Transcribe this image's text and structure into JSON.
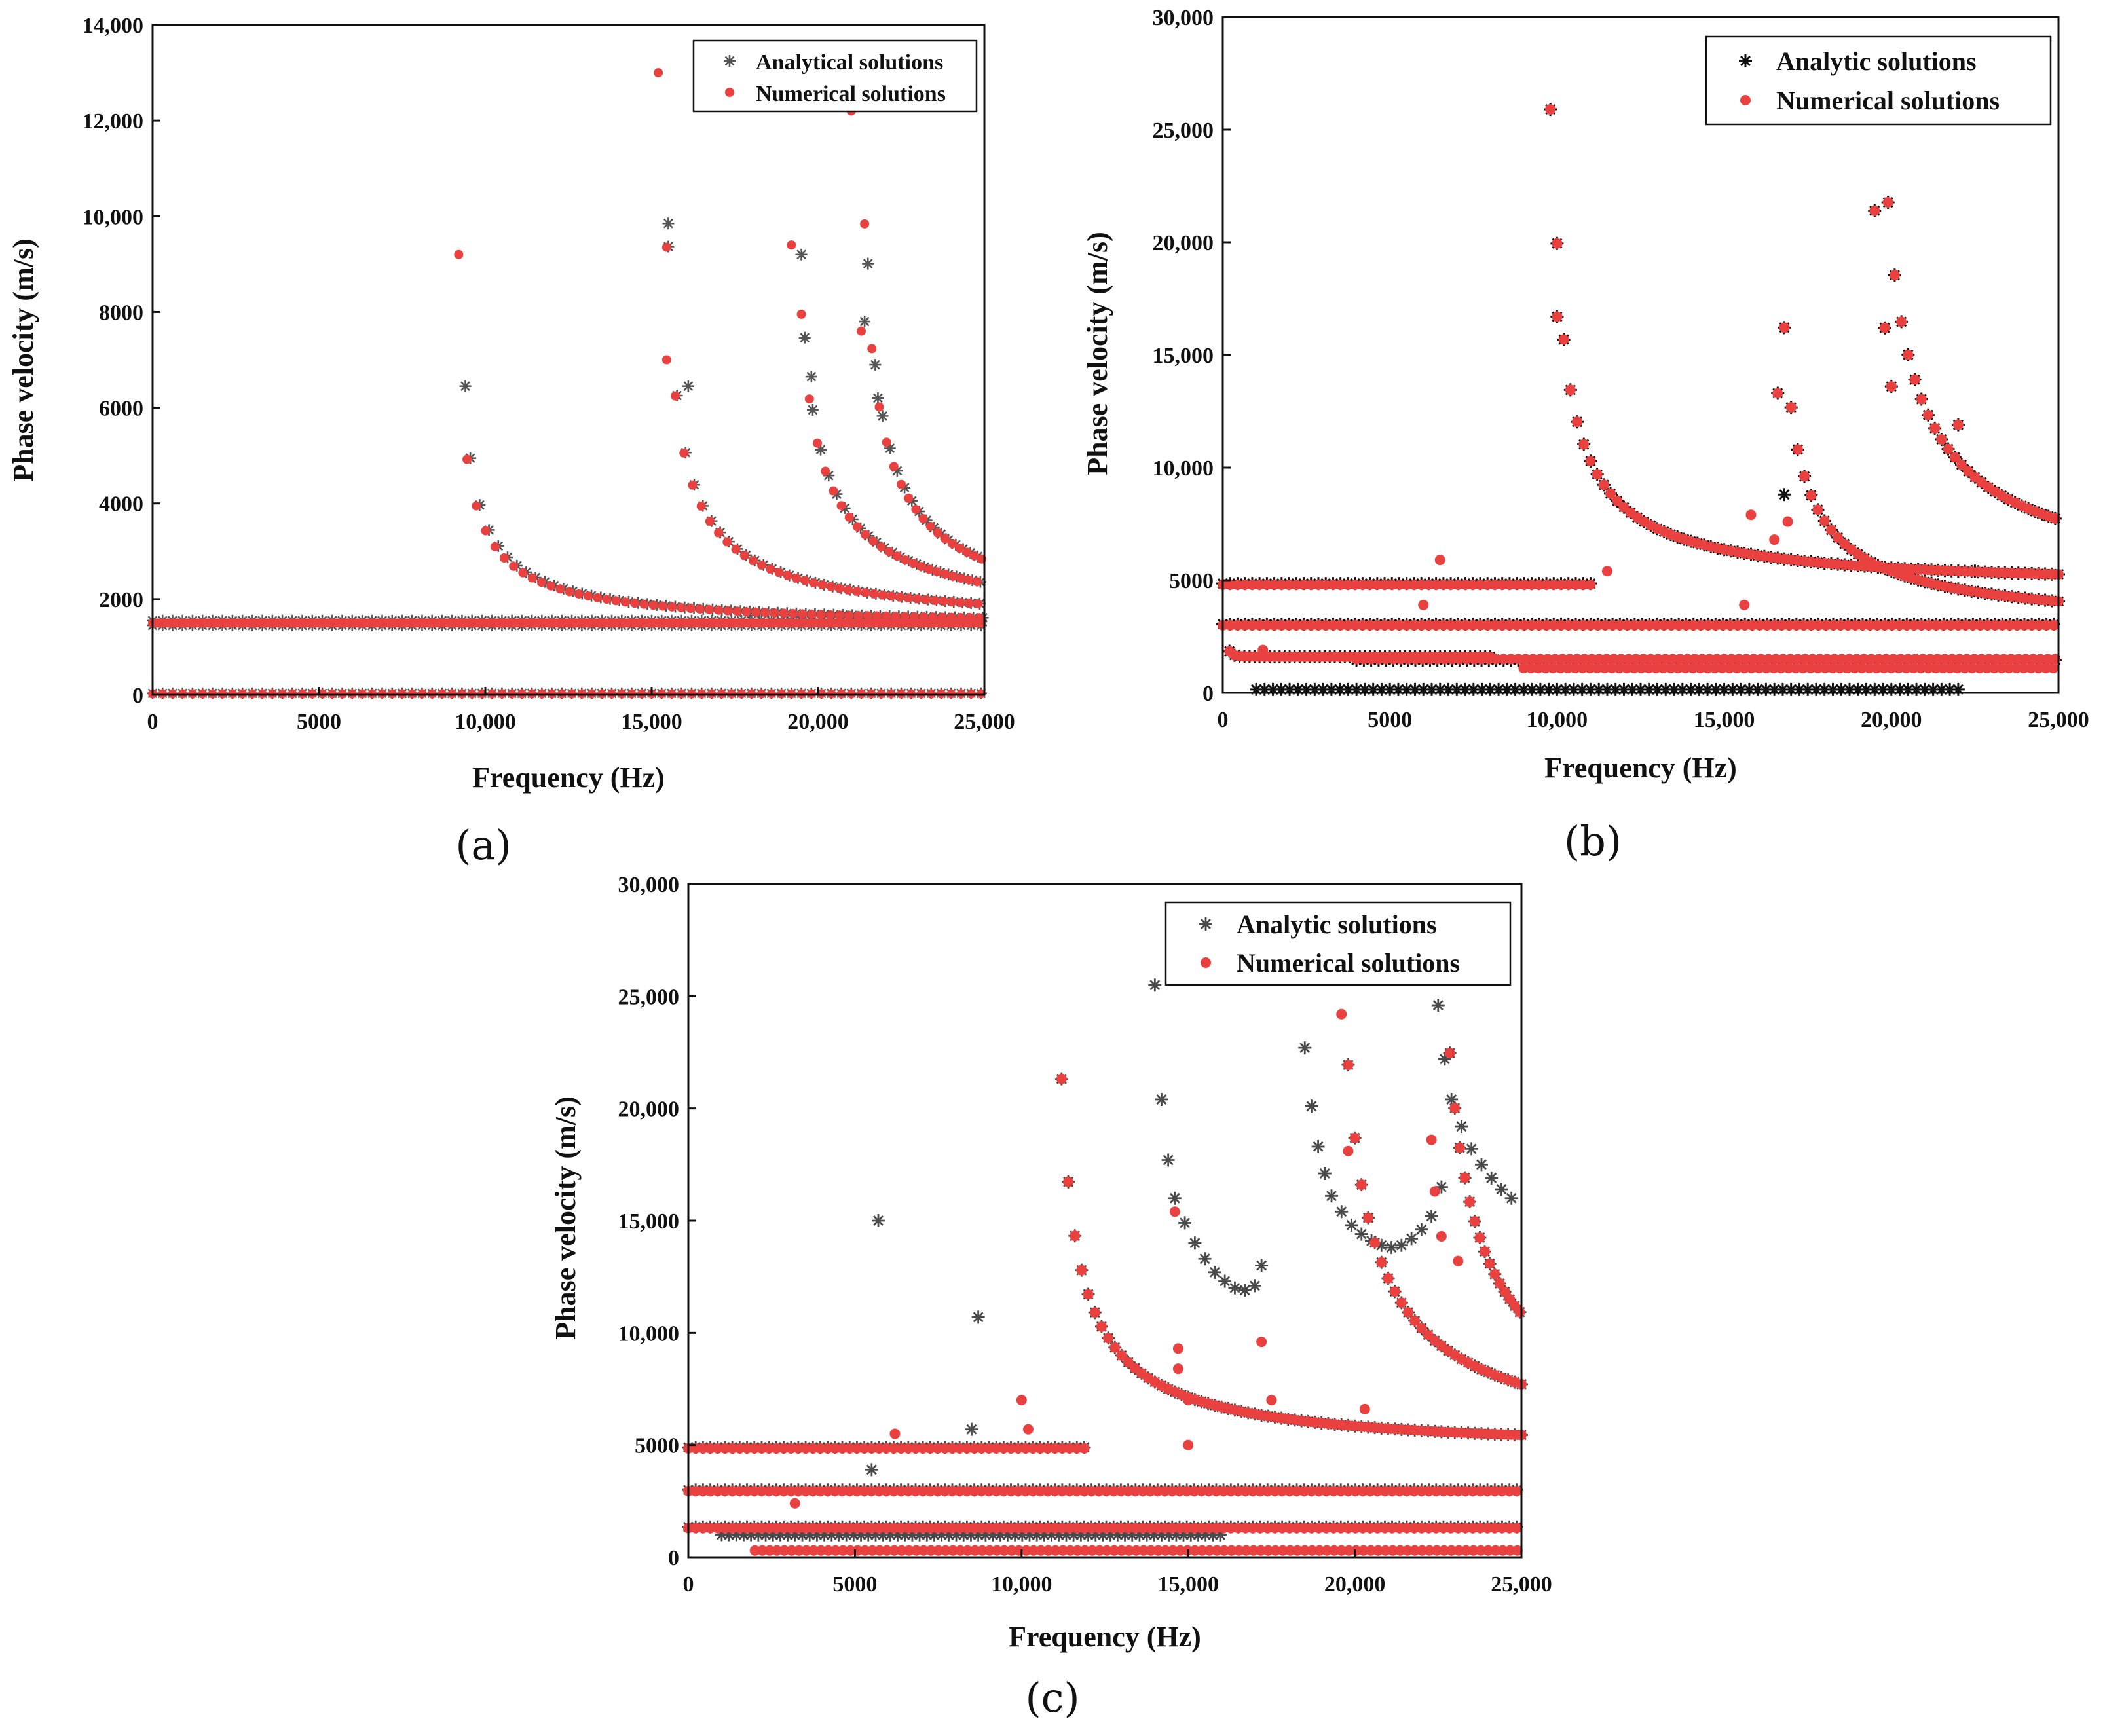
{
  "colors": {
    "analytic_a": "#555555",
    "analytic_b": "#111111",
    "analytic_c": "#4a4a4a",
    "numerical": "#e8413f"
  },
  "chart_data": [
    {
      "id": "a",
      "caption": "(a)",
      "type": "scatter",
      "xlabel": "Frequency (Hz)",
      "ylabel": "Phase velocity (m/s)",
      "xlim": [
        0,
        25000
      ],
      "ylim": [
        0,
        14000
      ],
      "xticks": [
        0,
        5000,
        10000,
        15000,
        20000,
        25000
      ],
      "xtick_labels": [
        "0",
        "5000",
        "10,000",
        "15,000",
        "20,000",
        "25,000"
      ],
      "yticks": [
        0,
        2000,
        4000,
        6000,
        8000,
        10000,
        12000,
        14000
      ],
      "ytick_labels": [
        "0",
        "2000",
        "4000",
        "6000",
        "8000",
        "10,000",
        "12,000",
        "14,000"
      ],
      "legend": [
        "Analytical solutions",
        "Numerical solutions"
      ],
      "legend_position": "top-right",
      "series": [
        {
          "name": "Analytical solutions",
          "marker": "star",
          "flat_lines": [
            {
              "y": 1550,
              "x_start": 0,
              "x_end": 25000,
              "step": 300
            },
            {
              "y": 1450,
              "x_start": 0,
              "x_end": 25000,
              "step": 300
            },
            {
              "y": 30,
              "x_start": 0,
              "x_end": 25000,
              "step": 300
            }
          ],
          "curves": [
            {
              "fc": 9100,
              "c": 1500,
              "x_start": 9550,
              "x_end": 25000,
              "step": 280
            },
            {
              "fc": 15300,
              "c": 1500,
              "x_start": 15500,
              "x_end": 25000,
              "step": 260
            },
            {
              "fc": 19200,
              "c": 1500,
              "x_start": 19600,
              "x_end": 25000,
              "step": 240
            },
            {
              "fc": 21200,
              "c": 1500,
              "x_start": 21500,
              "x_end": 25000,
              "step": 220
            }
          ],
          "points": [
            [
              9400,
              6450
            ],
            [
              15500,
              9850
            ],
            [
              19500,
              9200
            ],
            [
              21400,
              7800
            ],
            [
              16100,
              6450
            ],
            [
              19800,
              6650
            ],
            [
              21800,
              6200
            ]
          ]
        },
        {
          "name": "Numerical solutions",
          "marker": "dot",
          "flat_lines": [
            {
              "y": 1500,
              "x_start": 0,
              "x_end": 25000,
              "step": 300
            },
            {
              "y": 1500,
              "x_start": 150,
              "x_end": 25000,
              "step": 300
            },
            {
              "y": 20,
              "x_start": 0,
              "x_end": 25000,
              "step": 300
            }
          ],
          "curves": [
            {
              "fc": 9000,
              "c": 1500,
              "x_start": 9450,
              "x_end": 25000,
              "step": 280
            },
            {
              "fc": 15250,
              "c": 1500,
              "x_start": 15450,
              "x_end": 25000,
              "step": 260
            },
            {
              "fc": 19150,
              "c": 1500,
              "x_start": 19500,
              "x_end": 25000,
              "step": 240
            },
            {
              "fc": 21150,
              "c": 1500,
              "x_start": 21400,
              "x_end": 25000,
              "step": 220
            }
          ],
          "points": [
            [
              9200,
              9200
            ],
            [
              15200,
              13000
            ],
            [
              21000,
              12200
            ],
            [
              19200,
              9400
            ],
            [
              15450,
              7000
            ],
            [
              21300,
              7600
            ]
          ]
        }
      ]
    },
    {
      "id": "b",
      "caption": "(b)",
      "type": "scatter",
      "xlabel": "Frequency (Hz)",
      "ylabel": "Phase velocity (m/s)",
      "xlim": [
        0,
        25000
      ],
      "ylim": [
        0,
        30000
      ],
      "xticks": [
        0,
        5000,
        10000,
        15000,
        20000,
        25000
      ],
      "xtick_labels": [
        "0",
        "5000",
        "10,000",
        "15,000",
        "20,000",
        "25,000"
      ],
      "yticks": [
        0,
        5000,
        10000,
        15000,
        20000,
        25000,
        30000
      ],
      "ytick_labels": [
        "0",
        "5000",
        "10,000",
        "15,000",
        "20,000",
        "25,000",
        "30,000"
      ],
      "legend": [
        "Analytic solutions",
        "Numerical solutions"
      ],
      "legend_position": "top-right",
      "series": [
        {
          "name": "Analytic solutions",
          "marker": "star",
          "flat_lines": [
            {
              "y": 4850,
              "x_start": 0,
              "x_end": 11000,
              "step": 220
            },
            {
              "y": 3050,
              "x_start": 0,
              "x_end": 25000,
              "step": 220
            },
            {
              "y": 1450,
              "x_start": 4000,
              "x_end": 25000,
              "step": 220
            },
            {
              "y": 150,
              "x_start": 1000,
              "x_end": 22000,
              "step": 250
            }
          ],
          "curves": [
            {
              "fc": 9700,
              "c": 4850,
              "x_start": 9800,
              "x_end": 25000,
              "step": 200
            },
            {
              "fc": 19400,
              "c": 4850,
              "x_start": 19500,
              "x_end": 25000,
              "step": 200
            },
            {
              "fc": 16500,
              "c": 3050,
              "x_start": 16600,
              "x_end": 25000,
              "step": 200
            },
            {
              "fc": 100,
              "c": 1600,
              "x_start": 200,
              "x_end": 8000,
              "step": 150
            }
          ],
          "points": [
            [
              9800,
              25900
            ],
            [
              10000,
              16700
            ],
            [
              16600,
              13300
            ],
            [
              19500,
              21400
            ],
            [
              19800,
              16200
            ],
            [
              20000,
              13600
            ],
            [
              22000,
              11900
            ],
            [
              22500,
              5400
            ],
            [
              16800,
              8800
            ]
          ]
        },
        {
          "name": "Numerical solutions",
          "marker": "dot",
          "flat_lines": [
            {
              "y": 4800,
              "x_start": 0,
              "x_end": 11000,
              "step": 220
            },
            {
              "y": 3000,
              "x_start": 0,
              "x_end": 25000,
              "step": 220
            },
            {
              "y": 1500,
              "x_start": 4000,
              "x_end": 25000,
              "step": 220
            },
            {
              "y": 1100,
              "x_start": 9000,
              "x_end": 25000,
              "step": 220
            }
          ],
          "curves": [
            {
              "fc": 9700,
              "c": 4850,
              "x_start": 9800,
              "x_end": 25000,
              "step": 200
            },
            {
              "fc": 19400,
              "c": 4850,
              "x_start": 19500,
              "x_end": 25000,
              "step": 200
            },
            {
              "fc": 16500,
              "c": 3050,
              "x_start": 16600,
              "x_end": 25000,
              "step": 200
            },
            {
              "fc": 100,
              "c": 1600,
              "x_start": 200,
              "x_end": 8000,
              "step": 150
            }
          ],
          "points": [
            [
              9800,
              25900
            ],
            [
              10000,
              16700
            ],
            [
              16600,
              13300
            ],
            [
              19500,
              21400
            ],
            [
              19800,
              16200
            ],
            [
              20000,
              13600
            ],
            [
              22000,
              11900
            ],
            [
              6500,
              5900
            ],
            [
              15800,
              7900
            ],
            [
              15600,
              3900
            ],
            [
              11500,
              5400
            ],
            [
              6000,
              3900
            ],
            [
              1200,
              1900
            ],
            [
              16500,
              6800
            ],
            [
              16900,
              7600
            ]
          ]
        }
      ]
    },
    {
      "id": "c",
      "caption": "(c)",
      "type": "scatter",
      "xlabel": "Frequency (Hz)",
      "ylabel": "Phase velocity (m/s)",
      "xlim": [
        0,
        25000
      ],
      "ylim": [
        0,
        30000
      ],
      "xticks": [
        0,
        5000,
        10000,
        15000,
        20000,
        25000
      ],
      "xtick_labels": [
        "0",
        "5000",
        "10,000",
        "15,000",
        "20,000",
        "25,000"
      ],
      "yticks": [
        0,
        5000,
        10000,
        15000,
        20000,
        25000,
        30000
      ],
      "ytick_labels": [
        "0",
        "5000",
        "10,000",
        "15,000",
        "20,000",
        "25,000",
        "30,000"
      ],
      "legend": [
        "Analytic solutions",
        "Numerical solutions"
      ],
      "legend_position": "top-right",
      "series": [
        {
          "name": "Analytic solutions",
          "marker": "star",
          "flat_lines": [
            {
              "y": 4900,
              "x_start": 0,
              "x_end": 12000,
              "step": 220
            },
            {
              "y": 3000,
              "x_start": 0,
              "x_end": 25000,
              "step": 220
            },
            {
              "y": 1350,
              "x_start": 0,
              "x_end": 25000,
              "step": 220
            }
          ],
          "curves": [
            {
              "fc": 10900,
              "c": 4900,
              "x_start": 11000,
              "x_end": 25000,
              "step": 200
            },
            {
              "fc": 19300,
              "c": 4900,
              "x_start": 19400,
              "x_end": 25000,
              "step": 200
            },
            {
              "fc": 22300,
              "c": 4900,
              "x_start": 22400,
              "x_end": 25000,
              "step": 150
            },
            {
              "fc": 100,
              "c": 1000,
              "x_start": 1000,
              "x_end": 16000,
              "step": 220
            }
          ],
          "points": [
            [
              5700,
              15000
            ],
            [
              8700,
              10700
            ],
            [
              14000,
              25500
            ],
            [
              14200,
              20400
            ],
            [
              14400,
              17700
            ],
            [
              14600,
              16000
            ],
            [
              14900,
              14900
            ],
            [
              15200,
              14000
            ],
            [
              15500,
              13300
            ],
            [
              15800,
              12700
            ],
            [
              16100,
              12300
            ],
            [
              16400,
              12000
            ],
            [
              16700,
              11900
            ],
            [
              17000,
              12100
            ],
            [
              17200,
              13000
            ],
            [
              18500,
              22700
            ],
            [
              18700,
              20100
            ],
            [
              18900,
              18300
            ],
            [
              19100,
              17100
            ],
            [
              19300,
              16100
            ],
            [
              19600,
              15400
            ],
            [
              19900,
              14800
            ],
            [
              20200,
              14400
            ],
            [
              20500,
              14100
            ],
            [
              20800,
              13900
            ],
            [
              21100,
              13800
            ],
            [
              21400,
              13900
            ],
            [
              21700,
              14200
            ],
            [
              22000,
              14600
            ],
            [
              22300,
              15200
            ],
            [
              22600,
              16500
            ],
            [
              22500,
              24600
            ],
            [
              22700,
              22200
            ],
            [
              22900,
              20400
            ],
            [
              23200,
              19200
            ],
            [
              23500,
              18200
            ],
            [
              23800,
              17500
            ],
            [
              24100,
              16900
            ],
            [
              24400,
              16400
            ],
            [
              24700,
              16000
            ],
            [
              5500,
              3900
            ],
            [
              8500,
              5700
            ]
          ]
        },
        {
          "name": "Numerical solutions",
          "marker": "dot",
          "flat_lines": [
            {
              "y": 4850,
              "x_start": 0,
              "x_end": 12000,
              "step": 220
            },
            {
              "y": 2950,
              "x_start": 0,
              "x_end": 25000,
              "step": 220
            },
            {
              "y": 1300,
              "x_start": 0,
              "x_end": 25000,
              "step": 220
            },
            {
              "y": 300,
              "x_start": 2000,
              "x_end": 25000,
              "step": 220
            }
          ],
          "curves": [
            {
              "fc": 10900,
              "c": 4900,
              "x_start": 11000,
              "x_end": 25000,
              "step": 200
            },
            {
              "fc": 19300,
              "c": 4900,
              "x_start": 19400,
              "x_end": 25000,
              "step": 200
            },
            {
              "fc": 22300,
              "c": 4900,
              "x_start": 22400,
              "x_end": 25000,
              "step": 150
            }
          ],
          "points": [
            [
              17200,
              9600
            ],
            [
              14600,
              15400
            ],
            [
              14700,
              9300
            ],
            [
              14700,
              8400
            ],
            [
              15000,
              7000
            ],
            [
              15000,
              5000
            ],
            [
              17500,
              7000
            ],
            [
              19600,
              24200
            ],
            [
              19800,
              18100
            ],
            [
              20300,
              6600
            ],
            [
              22300,
              18600
            ],
            [
              22400,
              16300
            ],
            [
              22600,
              14300
            ],
            [
              23100,
              13200
            ],
            [
              6200,
              5500
            ],
            [
              3200,
              2400
            ],
            [
              10000,
              7000
            ],
            [
              10200,
              5700
            ]
          ]
        }
      ]
    }
  ]
}
